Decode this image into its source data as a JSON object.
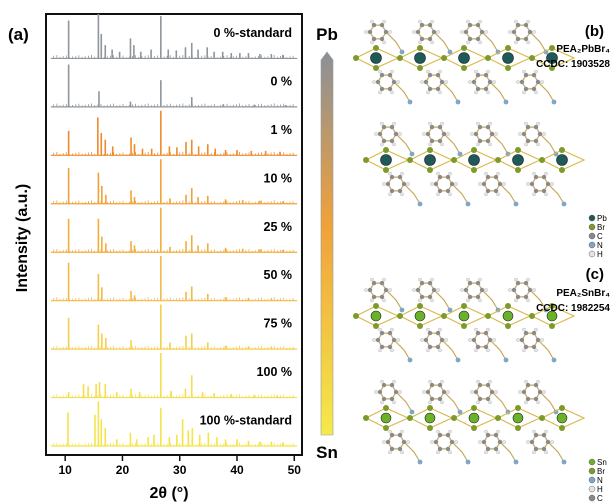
{
  "panel_a": {
    "label": "(a)",
    "ylabel": "Intensity (a.u.)",
    "xlabel": "2θ (°)"
  },
  "colorbar": {
    "top_label": "Pb",
    "bottom_label": "Sn",
    "top_color": "#8a9099",
    "mid_color": "#f0a13a",
    "bottom_color": "#f4ea4a"
  },
  "panel_b": {
    "label": "(b)",
    "formula": "PEA₂PbBr₄",
    "ccdc": "CCDC: 1903528",
    "legend": [
      "Pb",
      "Br",
      "C",
      "N",
      "H"
    ],
    "legend_colors": [
      "#1f5a5a",
      "#7d9a2a",
      "#8a8a8a",
      "#7fa6c9",
      "#e4e4e4"
    ]
  },
  "panel_c": {
    "label": "(c)",
    "formula": "PEA₂SnBr₄",
    "ccdc": "CCDC: 1982254",
    "legend": [
      "Sn",
      "Br",
      "N",
      "H",
      "C"
    ],
    "legend_colors": [
      "#6bb22b",
      "#7d9a2a",
      "#7fa6c9",
      "#e4e4e4",
      "#8a8a8a"
    ]
  },
  "chart_data": {
    "type": "line",
    "title": "",
    "xlabel": "2θ (°)",
    "ylabel": "Intensity (a.u.)",
    "xlim": [
      7,
      51
    ],
    "x_ticks": [
      10,
      20,
      30,
      40,
      50
    ],
    "grid": false,
    "series": [
      {
        "name": "0 %-standard",
        "color": "#8f959c",
        "peaks": [
          [
            10.6,
            0.85
          ],
          [
            15.8,
            1.0
          ],
          [
            16.3,
            0.55
          ],
          [
            17.0,
            0.3
          ],
          [
            18.2,
            0.2
          ],
          [
            19.5,
            0.15
          ],
          [
            21.4,
            0.45
          ],
          [
            22.0,
            0.3
          ],
          [
            23.2,
            0.15
          ],
          [
            25.0,
            0.2
          ],
          [
            26.7,
            0.95
          ],
          [
            28.0,
            0.2
          ],
          [
            29.4,
            0.18
          ],
          [
            31.0,
            0.25
          ],
          [
            32.1,
            0.35
          ],
          [
            33.2,
            0.2
          ],
          [
            34.8,
            0.25
          ],
          [
            36.0,
            0.15
          ],
          [
            37.5,
            0.15
          ],
          [
            39.0,
            0.12
          ],
          [
            40.5,
            0.12
          ],
          [
            42.0,
            0.12
          ],
          [
            44.0,
            0.1
          ],
          [
            46.0,
            0.1
          ],
          [
            48.0,
            0.08
          ]
        ]
      },
      {
        "name": "0 %",
        "color": "#8f959c",
        "peaks": [
          [
            10.6,
            0.95
          ],
          [
            15.9,
            0.35
          ],
          [
            21.4,
            0.12
          ],
          [
            26.7,
            0.6
          ],
          [
            32.1,
            0.22
          ],
          [
            37.6,
            0.06
          ],
          [
            43.0,
            0.05
          ],
          [
            48.5,
            0.04
          ]
        ]
      },
      {
        "name": "1 %",
        "color": "#ef8a2c",
        "peaks": [
          [
            10.6,
            0.55
          ],
          [
            15.7,
            0.85
          ],
          [
            16.3,
            0.5
          ],
          [
            17.0,
            0.35
          ],
          [
            18.3,
            0.2
          ],
          [
            21.5,
            0.4
          ],
          [
            22.1,
            0.25
          ],
          [
            23.5,
            0.15
          ],
          [
            25.1,
            0.15
          ],
          [
            26.7,
            1.0
          ],
          [
            28.2,
            0.2
          ],
          [
            29.5,
            0.18
          ],
          [
            31.1,
            0.3
          ],
          [
            32.1,
            0.35
          ],
          [
            33.3,
            0.2
          ],
          [
            34.9,
            0.25
          ],
          [
            36.2,
            0.15
          ],
          [
            38.0,
            0.12
          ],
          [
            40.0,
            0.12
          ],
          [
            42.5,
            0.1
          ],
          [
            45.0,
            0.1
          ],
          [
            47.5,
            0.08
          ]
        ]
      },
      {
        "name": "10 %",
        "color": "#f0a13a",
        "peaks": [
          [
            10.6,
            0.8
          ],
          [
            15.8,
            0.7
          ],
          [
            16.4,
            0.4
          ],
          [
            17.1,
            0.2
          ],
          [
            21.5,
            0.3
          ],
          [
            22.1,
            0.15
          ],
          [
            26.7,
            1.0
          ],
          [
            28.3,
            0.12
          ],
          [
            31.1,
            0.2
          ],
          [
            32.1,
            0.35
          ],
          [
            33.2,
            0.15
          ],
          [
            34.9,
            0.18
          ],
          [
            38.0,
            0.1
          ],
          [
            41.0,
            0.08
          ],
          [
            44.0,
            0.07
          ],
          [
            48.0,
            0.05
          ]
        ]
      },
      {
        "name": "25 %",
        "color": "#f2ad3e",
        "peaks": [
          [
            10.6,
            0.75
          ],
          [
            15.8,
            0.75
          ],
          [
            16.4,
            0.35
          ],
          [
            17.1,
            0.2
          ],
          [
            21.5,
            0.25
          ],
          [
            22.1,
            0.15
          ],
          [
            26.7,
            1.0
          ],
          [
            28.3,
            0.12
          ],
          [
            31.1,
            0.25
          ],
          [
            32.1,
            0.38
          ],
          [
            33.2,
            0.15
          ],
          [
            34.9,
            0.2
          ],
          [
            38.0,
            0.1
          ],
          [
            41.0,
            0.08
          ],
          [
            44.0,
            0.07
          ],
          [
            48.0,
            0.05
          ]
        ]
      },
      {
        "name": "50 %",
        "color": "#f3b947",
        "peaks": [
          [
            10.6,
            0.85
          ],
          [
            15.8,
            0.6
          ],
          [
            16.4,
            0.3
          ],
          [
            21.5,
            0.22
          ],
          [
            22.1,
            0.12
          ],
          [
            26.7,
            1.0
          ],
          [
            31.1,
            0.2
          ],
          [
            32.1,
            0.32
          ],
          [
            34.9,
            0.15
          ],
          [
            38.0,
            0.08
          ],
          [
            42.0,
            0.06
          ],
          [
            46.0,
            0.05
          ]
        ]
      },
      {
        "name": "75 %",
        "color": "#f5cf4c",
        "peaks": [
          [
            10.6,
            0.7
          ],
          [
            15.8,
            0.55
          ],
          [
            16.4,
            0.35
          ],
          [
            17.1,
            0.25
          ],
          [
            21.5,
            0.2
          ],
          [
            26.7,
            1.0
          ],
          [
            28.3,
            0.15
          ],
          [
            31.1,
            0.3
          ],
          [
            32.1,
            0.35
          ],
          [
            34.9,
            0.15
          ],
          [
            38.0,
            0.08
          ],
          [
            42.0,
            0.06
          ],
          [
            46.0,
            0.05
          ]
        ]
      },
      {
        "name": "100 %",
        "color": "#f6dd4d",
        "peaks": [
          [
            10.6,
            0.12
          ],
          [
            13.2,
            0.3
          ],
          [
            14.0,
            0.25
          ],
          [
            15.4,
            0.3
          ],
          [
            16.0,
            0.35
          ],
          [
            17.0,
            0.3
          ],
          [
            19.0,
            0.12
          ],
          [
            21.5,
            0.2
          ],
          [
            23.0,
            0.12
          ],
          [
            26.7,
            1.0
          ],
          [
            28.5,
            0.15
          ],
          [
            31.0,
            0.2
          ],
          [
            32.1,
            0.5
          ],
          [
            34.0,
            0.12
          ],
          [
            36.0,
            0.1
          ],
          [
            39.0,
            0.08
          ],
          [
            43.0,
            0.06
          ],
          [
            47.0,
            0.05
          ]
        ]
      },
      {
        "name": "100 %-standard",
        "color": "#f4e44a",
        "peaks": [
          [
            10.5,
            0.75
          ],
          [
            15.2,
            0.7
          ],
          [
            15.8,
            1.0
          ],
          [
            16.3,
            0.6
          ],
          [
            17.0,
            0.4
          ],
          [
            19.0,
            0.15
          ],
          [
            21.4,
            0.3
          ],
          [
            22.5,
            0.15
          ],
          [
            24.5,
            0.2
          ],
          [
            25.5,
            0.25
          ],
          [
            26.7,
            0.85
          ],
          [
            28.2,
            0.2
          ],
          [
            29.5,
            0.25
          ],
          [
            30.5,
            0.6
          ],
          [
            31.5,
            0.35
          ],
          [
            32.2,
            0.4
          ],
          [
            33.5,
            0.25
          ],
          [
            35.0,
            0.3
          ],
          [
            36.5,
            0.2
          ],
          [
            38.0,
            0.15
          ],
          [
            40.0,
            0.15
          ],
          [
            42.0,
            0.12
          ],
          [
            44.0,
            0.1
          ],
          [
            46.0,
            0.1
          ],
          [
            48.0,
            0.08
          ]
        ]
      }
    ]
  }
}
